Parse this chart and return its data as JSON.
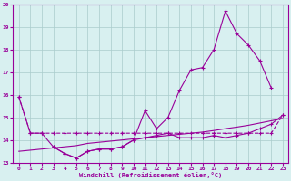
{
  "xlabel": "Windchill (Refroidissement éolien,°C)",
  "x_values": [
    0,
    1,
    2,
    3,
    4,
    5,
    6,
    7,
    8,
    9,
    10,
    11,
    12,
    13,
    14,
    15,
    16,
    17,
    18,
    19,
    20,
    21,
    22,
    23
  ],
  "line_straight": [
    13.5,
    13.55,
    13.6,
    13.65,
    13.7,
    13.75,
    13.85,
    13.9,
    13.95,
    14.0,
    14.05,
    14.1,
    14.15,
    14.2,
    14.25,
    14.3,
    14.35,
    14.42,
    14.5,
    14.57,
    14.65,
    14.75,
    14.85,
    14.95
  ],
  "line_dashed": [
    15.9,
    14.3,
    14.3,
    14.3,
    14.3,
    14.3,
    14.3,
    14.3,
    14.3,
    14.3,
    14.3,
    14.3,
    14.3,
    14.3,
    14.3,
    14.3,
    14.3,
    14.3,
    14.3,
    14.3,
    14.3,
    14.3,
    14.3,
    15.1
  ],
  "line_jagged_x": [
    0,
    1,
    2,
    3,
    4,
    5,
    6,
    7,
    8,
    9,
    10,
    11,
    12,
    13,
    14,
    15,
    16,
    17,
    18,
    19,
    20,
    21,
    22
  ],
  "line_jagged_y": [
    15.9,
    14.3,
    14.3,
    13.7,
    13.4,
    13.2,
    13.5,
    13.6,
    13.6,
    13.7,
    14.0,
    15.3,
    14.5,
    15.0,
    16.2,
    17.1,
    17.2,
    18.0,
    19.7,
    18.7,
    18.2,
    17.5,
    16.3
  ],
  "line_lower_x": [
    3,
    4,
    5,
    6,
    7,
    8,
    9,
    10,
    11,
    12,
    13,
    14,
    15,
    16,
    17,
    18,
    19,
    20,
    21,
    22,
    23
  ],
  "line_lower_y": [
    13.7,
    13.4,
    13.2,
    13.5,
    13.6,
    13.6,
    13.7,
    14.0,
    14.1,
    14.2,
    14.3,
    14.1,
    14.1,
    14.1,
    14.2,
    14.1,
    14.2,
    14.3,
    14.5,
    14.7,
    15.1
  ],
  "ylim": [
    13,
    20
  ],
  "xlim": [
    -0.5,
    23.5
  ],
  "yticks": [
    13,
    14,
    15,
    16,
    17,
    18,
    19,
    20
  ],
  "xticks": [
    0,
    1,
    2,
    3,
    4,
    5,
    6,
    7,
    8,
    9,
    10,
    11,
    12,
    13,
    14,
    15,
    16,
    17,
    18,
    19,
    20,
    21,
    22,
    23
  ],
  "line_color": "#990099",
  "bg_color": "#d8f0f0",
  "grid_color": "#aacccc"
}
